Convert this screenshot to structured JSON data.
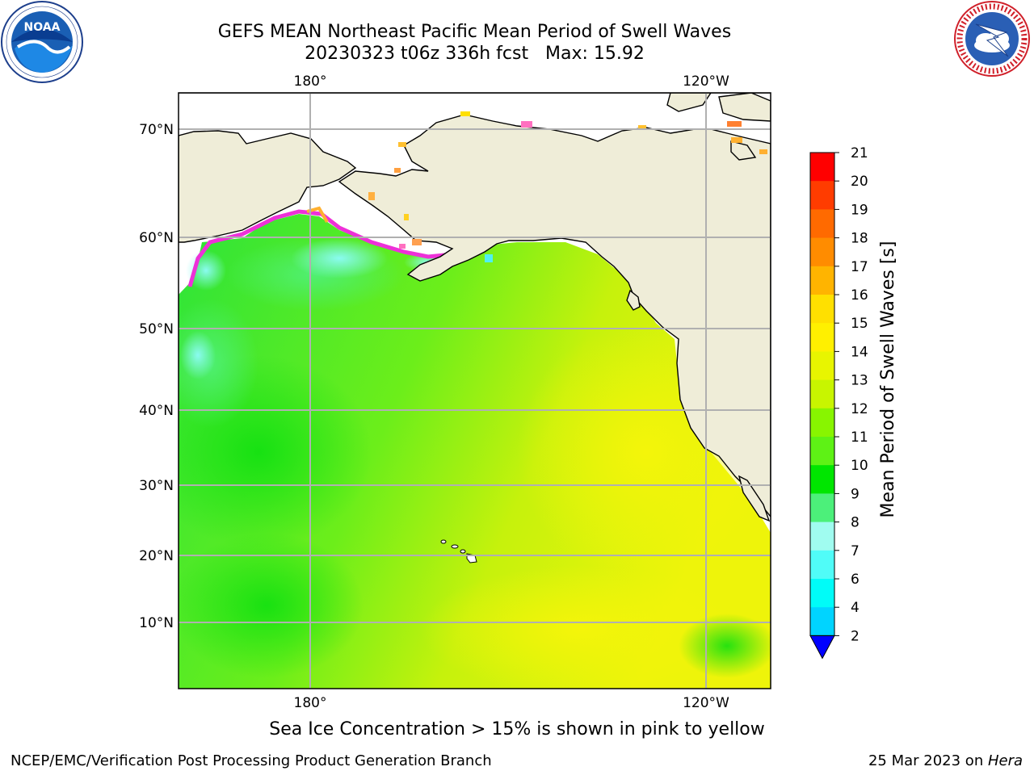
{
  "title": {
    "line1": "GEFS MEAN Northeast Pacific Mean Period of Swell Waves",
    "line2": "20230323 t06z 336h fcst   Max: 15.92"
  },
  "logos": {
    "left": {
      "name": "noaa-logo",
      "text": "NOAA",
      "ring_text": "NATIONAL OCEANIC AND ATMOSPHERIC ADMINISTRATION · U.S. DEPARTMENT OF COMMERCE"
    },
    "right": {
      "name": "nws-logo",
      "ring_text": "NATIONAL WEATHER SERVICE"
    }
  },
  "map": {
    "projection": "equirectangular-like",
    "lon_labels_top": [
      "180°",
      "120°W"
    ],
    "lon_labels_bottom": [
      "180°",
      "120°W"
    ],
    "lat_labels": [
      "70°N",
      "60°N",
      "50°N",
      "40°N",
      "30°N",
      "20°N",
      "10°N"
    ],
    "colors": {
      "land": "#efedd8",
      "ocean_green": "#3fe24a",
      "ocean_yellow_green": "#c8f20b",
      "ocean_yellow": "#f1f40b",
      "cyan": "#7ff8f4",
      "sea_ice_pink": "#f030d8",
      "gridline": "#b0b0b0"
    }
  },
  "colorbar": {
    "label": "Mean Period of Swell Waves [s]",
    "ticks": [
      "21",
      "20",
      "19",
      "18",
      "17",
      "16",
      "15",
      "14",
      "13",
      "12",
      "11",
      "10",
      "9",
      "8",
      "7",
      "6",
      "4",
      "2"
    ],
    "colors": [
      "#ff0000",
      "#ff3c00",
      "#ff6a00",
      "#ff8c00",
      "#ffb400",
      "#ffe000",
      "#fff000",
      "#e8f500",
      "#c8f500",
      "#88f500",
      "#5ef215",
      "#00e600",
      "#4cf07a",
      "#a0fcf0",
      "#50fcf8",
      "#00fcf8",
      "#00d4ff",
      "#0080ff"
    ],
    "extend_color": "#0000ff"
  },
  "note": "Sea Ice Concentration > 15% is shown in pink to yellow",
  "footer": {
    "left": "NCEP/EMC/Verification Post Processing Product Generation Branch",
    "date": "25 Mar 2023 on ",
    "machine": "Hera"
  }
}
